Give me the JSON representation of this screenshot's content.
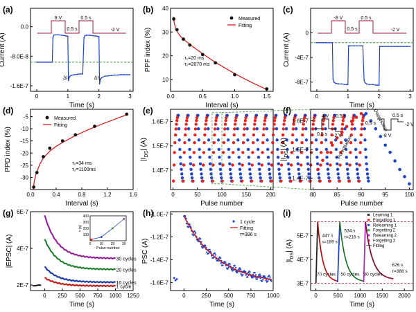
{
  "colors": {
    "red": "#e8211d",
    "blue": "#1f44c8",
    "green": "#2a9a3a",
    "purple": "#b22bb8",
    "maroon": "#a3163a",
    "dash_green": "#3c9b3c",
    "dash_pink": "#c44b72",
    "fit_red": "#d81e1e",
    "dark": "#222222"
  },
  "chart_data": [
    {
      "panel": "(a)",
      "type": "line",
      "xlabel": "Time (s)",
      "ylabel": "Current (A)",
      "xlim": [
        -0.2,
        3.1
      ],
      "ylim": [
        -1.75e-07,
        5e-08
      ],
      "x_ticks": [
        0,
        1,
        2,
        3
      ],
      "x_tick_labels": [
        "0",
        "1",
        "2",
        "3"
      ],
      "y_ticks": [
        0,
        -8e-08,
        -1.6e-07
      ],
      "y_tick_labels": [
        "0.0",
        "-8.0E-8",
        "-1.6E-7"
      ],
      "annotations": [
        "8 V",
        "0.5 s",
        "0.5 s",
        "-2 V",
        "ΔI₁",
        "ΔI₂"
      ],
      "baseline": -9.6e-08,
      "series": [
        {
          "x": [
            0.0,
            0.05,
            0.1,
            0.15,
            0.2,
            0.25,
            0.3,
            0.35,
            0.4,
            0.45,
            0.5,
            0.52,
            0.55,
            0.6,
            0.7,
            0.8,
            0.9,
            0.95,
            1.0,
            1.02,
            1.05,
            1.1,
            1.2,
            1.3,
            1.4,
            1.48,
            1.52,
            1.55,
            1.6,
            1.7,
            1.8,
            1.9,
            1.95,
            2.0,
            2.02,
            2.05,
            2.1,
            2.2,
            2.3,
            2.4,
            2.5,
            2.6,
            2.7,
            2.8,
            2.9,
            3.0
          ],
          "y": [
            -9.6e-08,
            -9.6e-08,
            -9.6e-08,
            -9.6e-08,
            -9.6e-08,
            -9.6e-08,
            -9.6e-08,
            -9.6e-08,
            -9.6e-08,
            -9.6e-08,
            -9.6e-08,
            -3e-08,
            -2.3e-08,
            -2.2e-08,
            -2.2e-08,
            -2.3e-08,
            -2.4e-08,
            -2.5e-08,
            -2.6e-08,
            -1.46e-07,
            -1.36e-07,
            -1.32e-07,
            -1.3e-07,
            -1.29e-07,
            -1.28e-07,
            -1.28e-07,
            -3e-08,
            -2.4e-08,
            -2.3e-08,
            -2.3e-08,
            -2.4e-08,
            -2.5e-08,
            -2.6e-08,
            -2.7e-08,
            -1.55e-07,
            -1.42e-07,
            -1.37e-07,
            -1.34e-07,
            -1.33e-07,
            -1.32e-07,
            -1.31e-07,
            -1.31e-07,
            -1.3e-07,
            -1.3e-07,
            -1.3e-07,
            -1.3e-07
          ]
        }
      ]
    },
    {
      "panel": "(b)",
      "type": "scatter",
      "xlabel": "Interval (s)",
      "ylabel": "PPF index (%)",
      "xlim": [
        0,
        1.6
      ],
      "ylim": [
        5,
        40
      ],
      "x_ticks": [
        0,
        0.5,
        1.0,
        1.5
      ],
      "x_tick_labels": [
        "0.0",
        "0.5",
        "1.0",
        "1.5"
      ],
      "y_ticks": [
        10,
        20,
        30,
        40
      ],
      "y_tick_labels": [
        "10",
        "20",
        "30",
        "40"
      ],
      "legend": [
        "Measured",
        "Fitting"
      ],
      "annotation_lines": [
        "τ₁=20 ms",
        "τ₂=2070 ms"
      ],
      "measured": {
        "x": [
          0.05,
          0.1,
          0.2,
          0.3,
          0.5,
          0.7,
          1.0,
          1.5
        ],
        "y": [
          35.5,
          31,
          27,
          24.5,
          20.5,
          17,
          12,
          6
        ]
      },
      "fit": {
        "x": [
          0.04,
          0.06,
          0.08,
          0.1,
          0.15,
          0.2,
          0.3,
          0.4,
          0.5,
          0.6,
          0.7,
          0.8,
          0.9,
          1.0,
          1.1,
          1.2,
          1.3,
          1.4,
          1.5
        ],
        "y": [
          36.5,
          33.5,
          31.5,
          30.2,
          28.3,
          27,
          24.8,
          22.8,
          20.8,
          19,
          17.2,
          15.6,
          14,
          12.5,
          11,
          9.6,
          8.3,
          7,
          5.8
        ]
      }
    },
    {
      "panel": "(c)",
      "type": "line",
      "xlabel": "Time (s)",
      "ylabel": "Current (A)",
      "xlim": [
        -0.2,
        3.1
      ],
      "ylim": [
        -9.5e-07,
        4e-07
      ],
      "x_ticks": [
        0,
        1,
        2,
        3
      ],
      "x_tick_labels": [
        "0",
        "1",
        "2",
        "3"
      ],
      "y_ticks": [
        0,
        -4e-07,
        -8e-07
      ],
      "y_tick_labels": [
        "0",
        "-4E-7",
        "-8E-7"
      ],
      "annotations": [
        "-8 V",
        "0.5 s",
        "0.5 s",
        "-2 V"
      ],
      "baseline": -1.6e-07,
      "series": [
        {
          "x": [
            0.0,
            0.1,
            0.2,
            0.3,
            0.4,
            0.5,
            0.52,
            0.55,
            0.6,
            0.7,
            0.8,
            0.9,
            0.95,
            1.0,
            1.02,
            1.05,
            1.1,
            1.2,
            1.3,
            1.4,
            1.48,
            1.52,
            1.55,
            1.6,
            1.7,
            1.8,
            1.9,
            1.95,
            2.0,
            2.02,
            2.05,
            2.1,
            2.2,
            2.3,
            2.4,
            2.5,
            2.6,
            2.7,
            2.8,
            2.9,
            3.0
          ],
          "y": [
            -1.6e-07,
            -1.6e-07,
            -1.6e-07,
            -1.6e-07,
            -1.6e-07,
            -1.6e-07,
            -7.5e-07,
            -8e-07,
            -8.2e-07,
            -8.3e-07,
            -8.3e-07,
            -8.4e-07,
            -8.4e-07,
            -8.4e-07,
            -2.1e-07,
            -2.1e-07,
            -2.1e-07,
            -2.1e-07,
            -2.1e-07,
            -2.1e-07,
            -2.1e-07,
            -7.7e-07,
            -8.1e-07,
            -8.3e-07,
            -8.4e-07,
            -8.4e-07,
            -8.5e-07,
            -8.5e-07,
            -8.5e-07,
            -2.2e-07,
            -2.2e-07,
            -2.2e-07,
            -2.2e-07,
            -2.2e-07,
            -2.2e-07,
            -2.2e-07,
            -2.2e-07,
            -2.2e-07,
            -2.2e-07,
            -2.2e-07,
            -2.2e-07
          ]
        }
      ]
    },
    {
      "panel": "(d)",
      "type": "scatter",
      "xlabel": "Interval (s)",
      "ylabel": "PPD index (%)",
      "xlim": [
        0,
        1.6
      ],
      "ylim": [
        -35,
        -2
      ],
      "x_ticks": [
        0,
        0.4,
        0.8,
        1.2,
        1.6
      ],
      "x_tick_labels": [
        "0.0",
        "0.4",
        "0.8",
        "1.2",
        "1.6"
      ],
      "y_ticks": [
        -30,
        -25,
        -20,
        -15,
        -10,
        -5
      ],
      "y_tick_labels": [
        "-30",
        "-25",
        "-20",
        "-15",
        "-10",
        "-5"
      ],
      "legend": [
        "Measured",
        "Fitting"
      ],
      "annotation_lines": [
        "τ₁=34 ms",
        "τ₂=1100ms"
      ],
      "measured": {
        "x": [
          0.05,
          0.1,
          0.2,
          0.3,
          0.5,
          0.7,
          1.0,
          1.5
        ],
        "y": [
          -34,
          -28,
          -21.5,
          -18,
          -15,
          -12.5,
          -9,
          -4
        ]
      },
      "fit": {
        "x": [
          0.04,
          0.06,
          0.08,
          0.1,
          0.15,
          0.2,
          0.3,
          0.4,
          0.5,
          0.6,
          0.7,
          0.8,
          0.9,
          1.0,
          1.1,
          1.2,
          1.3,
          1.4,
          1.5
        ],
        "y": [
          -35,
          -31.5,
          -29.2,
          -27.5,
          -24.3,
          -22,
          -19.2,
          -17.2,
          -15.6,
          -14.2,
          -12.8,
          -11.6,
          -10.4,
          -9.3,
          -8.2,
          -7.2,
          -6.2,
          -5.2,
          -4.3
        ]
      }
    },
    {
      "panel": "(e)",
      "type": "scatter",
      "xlabel": "Pulse number",
      "ylabel": "|I_DS| (A)",
      "xlim": [
        -5,
        205
      ],
      "ylim": [
        1.32e-07,
        1.65e-07
      ],
      "x_ticks": [
        0,
        50,
        100,
        150,
        200
      ],
      "x_tick_labels": [
        "0",
        "50",
        "100",
        "150",
        "200"
      ],
      "y_ticks": [
        1.4e-07,
        1.5e-07,
        1.6e-07
      ],
      "y_tick_labels": [
        "1.4E-7",
        "1.5E-7",
        "1.6E-7"
      ],
      "cycles": 20,
      "points_per_half": 10,
      "y_low": 1.355e-07,
      "y_high": 1.625e-07
    },
    {
      "panel": "(f)",
      "type": "scatter",
      "xlabel": "Pulse number",
      "ylabel": "|I_DS| (A)",
      "xlim": [
        79.5,
        100.8
      ],
      "ylim": [
        1.36e-07,
        1.64e-07
      ],
      "x_ticks": [
        80,
        85,
        90,
        95,
        100
      ],
      "x_tick_labels": [
        "80",
        "85",
        "90",
        "95",
        "100"
      ],
      "y_ticks": [
        1.4e-07,
        1.5e-07,
        1.6e-07
      ],
      "y_tick_labels": [
        "1.4E-7",
        "1.5E-7",
        "1.6E-7"
      ],
      "annotations": [
        "4 V",
        "0.5 s",
        "0.5 s",
        "-2 V",
        "0.5 s",
        "0.5 s",
        "-8 V",
        "-2 V",
        "Potentiation",
        "Depression"
      ],
      "potentiation": {
        "x": [
          81,
          82,
          83,
          84,
          85,
          86,
          87,
          88,
          89,
          90
        ],
        "y": [
          1.43e-07,
          1.462e-07,
          1.49e-07,
          1.515e-07,
          1.54e-07,
          1.56e-07,
          1.58e-07,
          1.598e-07,
          1.612e-07,
          1.625e-07
        ]
      },
      "depression": {
        "x": [
          91,
          92,
          93,
          94,
          95,
          96,
          97,
          98,
          99,
          100
        ],
        "y": [
          1.625e-07,
          1.6e-07,
          1.572e-07,
          1.545e-07,
          1.515e-07,
          1.49e-07,
          1.46e-07,
          1.43e-07,
          1.405e-07,
          1.38e-07
        ]
      }
    },
    {
      "panel": "(g)",
      "type": "line",
      "xlabel": "Time (s)",
      "ylabel": "|EPSC| (A)",
      "xlim": [
        -200,
        1250
      ],
      "ylim": [
        1.7e-07,
        6e-07
      ],
      "x_ticks": [
        0,
        250,
        500,
        750,
        1000,
        1250
      ],
      "x_tick_labels": [
        "0",
        "250",
        "500",
        "750",
        "1000",
        "1250"
      ],
      "y_ticks": [
        2e-07,
        4e-07,
        6e-07
      ],
      "y_tick_labels": [
        "2E-7",
        "4E-7",
        "6E-7"
      ],
      "series": [
        {
          "name": "1 cycle",
          "color": "red",
          "start": 2.4e-07,
          "end": 1.95e-07
        },
        {
          "name": "10 cycles",
          "color": "blue",
          "start": 3e-07,
          "end": 2.15e-07
        },
        {
          "name": "20 cycles",
          "color": "green",
          "start": 4.5e-07,
          "end": 2.85e-07
        },
        {
          "name": "30 cycles",
          "color": "purple",
          "start": 5.8e-07,
          "end": 3.45e-07
        }
      ],
      "inset": {
        "xlabel": "Pulse number",
        "ylabel": "τ (s)",
        "xlim": [
          0,
          32
        ],
        "ylim": [
          0,
          400
        ],
        "x_ticks": [
          0,
          10,
          20,
          30
        ],
        "x_tick_labels": [
          "0",
          "10",
          "20",
          "30"
        ],
        "y_ticks": [
          100,
          200,
          300,
          400
        ],
        "y_tick_labels": [
          "100",
          "200",
          "300",
          "400"
        ],
        "x": [
          1,
          10,
          20,
          30
        ],
        "y": [
          20,
          60,
          200,
          350
        ]
      }
    },
    {
      "panel": "(h)",
      "type": "line",
      "xlabel": "Time (s)",
      "ylabel": "PSC (A)",
      "xlim": [
        -150,
        1000
      ],
      "ylim": [
        -1.67e-07,
        -9.8e-08
      ],
      "x_ticks": [
        0,
        250,
        500,
        750,
        1000
      ],
      "x_tick_labels": [
        "0",
        "250",
        "500",
        "750",
        "1000"
      ],
      "y_ticks": [
        -1e-07,
        -1.2e-07,
        -1.4e-07,
        -1.6e-07
      ],
      "y_tick_labels": [
        "-1.0E-7",
        "-1.2E-7",
        "-1.4E-7",
        "-1.6E-7"
      ],
      "legend": [
        "1 cycle",
        "Fitting"
      ],
      "annotation": "τ=386 s",
      "tau": 386,
      "start": -1.02e-07,
      "end": -1.62e-07
    },
    {
      "panel": "(i)",
      "type": "line",
      "xlabel": "Time (s)",
      "ylabel": "|I_DS| (A)",
      "xlim": [
        -120,
        2200
      ],
      "ylim": [
        2.7e-07,
        6e-07
      ],
      "x_ticks": [
        0,
        500,
        1000,
        1500,
        2000
      ],
      "x_tick_labels": [
        "0",
        "500",
        "1000",
        "1500",
        "2000"
      ],
      "y_ticks": [
        3e-07,
        4e-07,
        5e-07
      ],
      "y_tick_labels": [
        "3E-7",
        "4E-7",
        "5E-7"
      ],
      "legend": [
        "Learning 1",
        "Forgetting 1",
        "Relearning 1",
        "Forgetting 2",
        "Relearning 2",
        "Forgetting 3",
        "Fitting"
      ],
      "annotations": [
        "447 s",
        "τ=189 s",
        "534 s",
        "τ=216 s",
        "70 cycles",
        "50 cycles",
        "30 cycles",
        "626 s",
        "τ=388 s"
      ],
      "upper_line": 5.58e-07,
      "lower_line": 3e-07,
      "segments": [
        {
          "name": "Learning 1",
          "color": "dark",
          "t0": 0,
          "t1": 40,
          "start": 3e-07,
          "end": 5.58e-07,
          "kind": "rise"
        },
        {
          "name": "Forgetting 1",
          "color": "red",
          "t0": 40,
          "t1": 490,
          "start": 5.58e-07,
          "end": 3.05e-07,
          "kind": "decay"
        },
        {
          "name": "Relearning 1",
          "color": "blue",
          "t0": 490,
          "t1": 540,
          "start": 3.05e-07,
          "end": 5.58e-07,
          "kind": "rise"
        },
        {
          "name": "Forgetting 2",
          "color": "green",
          "t0": 540,
          "t1": 1080,
          "start": 5.58e-07,
          "end": 3.05e-07,
          "kind": "decay"
        },
        {
          "name": "Relearning 2",
          "color": "purple",
          "t0": 1080,
          "t1": 1120,
          "start": 3.05e-07,
          "end": 5.58e-07,
          "kind": "rise"
        },
        {
          "name": "Forgetting 3",
          "color": "maroon",
          "t0": 1120,
          "t1": 1750,
          "start": 5.58e-07,
          "end": 3.15e-07,
          "kind": "decay"
        }
      ]
    }
  ]
}
